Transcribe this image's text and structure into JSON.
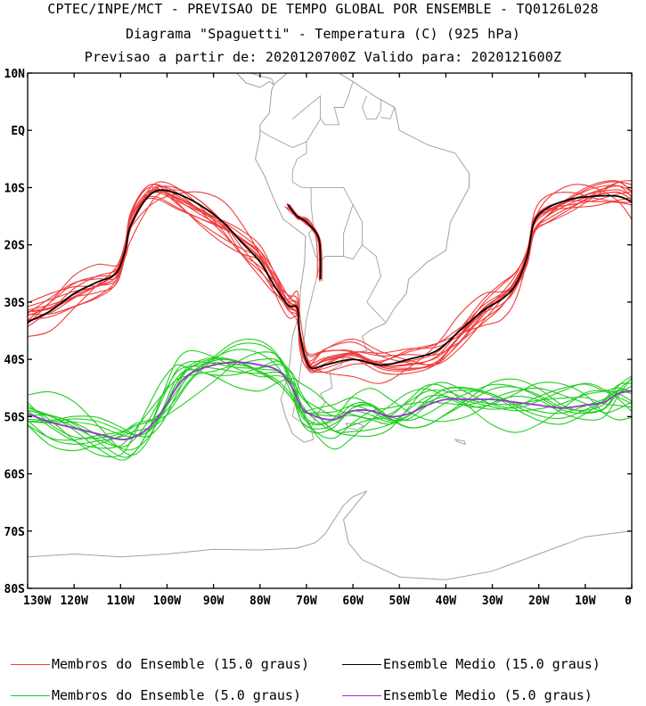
{
  "titles": {
    "line1": "CPTEC/INPE/MCT - PREVISAO DE TEMPO GLOBAL POR ENSEMBLE - TQ0126L028",
    "line2": "Diagrama \"Spaguetti\" - Temperatura (C) (925 hPa)",
    "line3": "Previsao a partir de: 2020120700Z  Valido para: 2020121600Z"
  },
  "map": {
    "lon_range": [
      -130,
      0
    ],
    "lat_range": [
      -80,
      10
    ],
    "lat_tick_labels": [
      "10N",
      "EQ",
      "10S",
      "20S",
      "30S",
      "40S",
      "50S",
      "60S",
      "70S",
      "80S"
    ],
    "lat_tick_values": [
      10,
      0,
      -10,
      -20,
      -30,
      -40,
      -50,
      -60,
      -70,
      -80
    ],
    "lon_tick_labels": [
      "130W",
      "120W",
      "110W",
      "100W",
      "90W",
      "80W",
      "70W",
      "60W",
      "50W",
      "40W",
      "30W",
      "20W",
      "10W",
      "0"
    ],
    "lon_tick_values": [
      -130,
      -120,
      -110,
      -100,
      -90,
      -80,
      -70,
      -60,
      -50,
      -40,
      -30,
      -20,
      -10,
      0
    ],
    "coastline_color": "#a0a0a0"
  },
  "contours": {
    "isotherm_15": {
      "members_color": "#f03c3c",
      "mean_color": "#000000",
      "members_count": 14,
      "mean_path_lonlat": [
        [
          -130,
          -33.5
        ],
        [
          -125,
          -31.5
        ],
        [
          -120,
          -28.5
        ],
        [
          -115,
          -26.5
        ],
        [
          -111,
          -25
        ],
        [
          -109,
          -21
        ],
        [
          -108,
          -17
        ],
        [
          -105,
          -12.5
        ],
        [
          -102,
          -10.5
        ],
        [
          -98,
          -11
        ],
        [
          -93,
          -13
        ],
        [
          -88,
          -16
        ],
        [
          -84,
          -19.5
        ],
        [
          -80,
          -23
        ],
        [
          -77,
          -27
        ],
        [
          -74,
          -30.5
        ],
        [
          -72,
          -31
        ],
        [
          -71.5,
          -35
        ],
        [
          -70.5,
          -39
        ],
        [
          -69,
          -41.5
        ],
        [
          -66,
          -41
        ],
        [
          -60,
          -40
        ],
        [
          -54,
          -41
        ],
        [
          -48,
          -40
        ],
        [
          -42,
          -38.5
        ],
        [
          -37,
          -35
        ],
        [
          -32,
          -31.5
        ],
        [
          -28,
          -29.5
        ],
        [
          -25,
          -27
        ],
        [
          -22.5,
          -22
        ],
        [
          -21,
          -16
        ],
        [
          -18,
          -13.5
        ],
        [
          -13,
          -12
        ],
        [
          -8,
          -11.5
        ],
        [
          -3,
          -11.5
        ],
        [
          0,
          -12.5
        ]
      ],
      "andes_mean_path_lonlat": [
        [
          -74,
          -13
        ],
        [
          -72,
          -15
        ],
        [
          -70,
          -16
        ],
        [
          -67.5,
          -18.5
        ],
        [
          -67,
          -22
        ],
        [
          -67,
          -26
        ]
      ]
    },
    "isotherm_5": {
      "members_color": "#22cc22",
      "mean_color": "#9933cc",
      "members_count": 14,
      "mean_path_lonlat": [
        [
          -130,
          -49.5
        ],
        [
          -125,
          -51
        ],
        [
          -120,
          -52
        ],
        [
          -115,
          -53
        ],
        [
          -110,
          -54
        ],
        [
          -107,
          -53.5
        ],
        [
          -104,
          -52
        ],
        [
          -101,
          -49
        ],
        [
          -98,
          -45
        ],
        [
          -95,
          -42.5
        ],
        [
          -90,
          -41
        ],
        [
          -85,
          -40.5
        ],
        [
          -80,
          -41
        ],
        [
          -76,
          -42
        ],
        [
          -73,
          -45
        ],
        [
          -71,
          -48.5
        ],
        [
          -68,
          -50
        ],
        [
          -64,
          -50.5
        ],
        [
          -60,
          -49
        ],
        [
          -56,
          -49
        ],
        [
          -52,
          -50
        ],
        [
          -48,
          -49.5
        ],
        [
          -44,
          -48
        ],
        [
          -40,
          -47
        ],
        [
          -35,
          -47
        ],
        [
          -30,
          -47
        ],
        [
          -25,
          -47.5
        ],
        [
          -20,
          -48
        ],
        [
          -15,
          -48.5
        ],
        [
          -10,
          -48
        ],
        [
          -6,
          -47.5
        ],
        [
          -3,
          -46
        ],
        [
          0,
          -45.5
        ]
      ]
    }
  },
  "legend": [
    {
      "label": "Membros do Ensemble (15.0 graus)",
      "color": "#f03c3c"
    },
    {
      "label": "Ensemble Medio (15.0 graus)",
      "color": "#000000"
    },
    {
      "label": "Membros do Ensemble (5.0 graus)",
      "color": "#22cc22"
    },
    {
      "label": "Ensemble Medio (5.0 graus)",
      "color": "#9933cc"
    }
  ]
}
